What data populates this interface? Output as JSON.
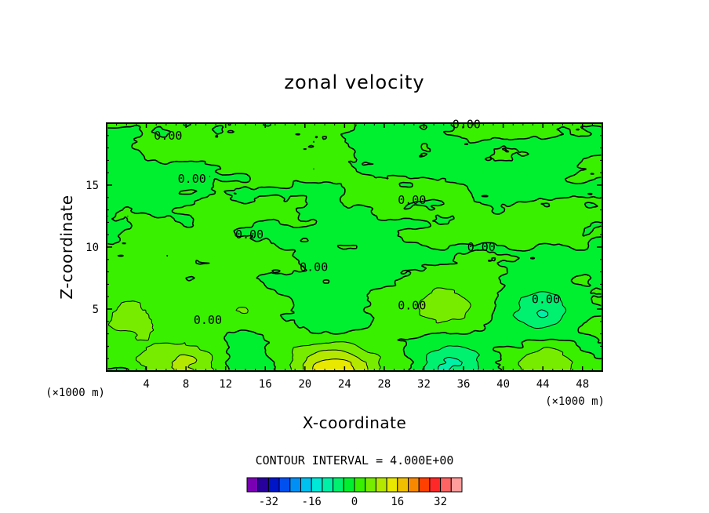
{
  "chart_data": {
    "type": "contour",
    "title": "zonal velocity",
    "xlabel": "X-coordinate",
    "ylabel": "Z-coordinate",
    "x_unit": "(×1000 m)",
    "y_unit": "(×1000 m)",
    "xlim": [
      0,
      50
    ],
    "ylim": [
      0,
      20
    ],
    "x_ticks": [
      4,
      8,
      12,
      16,
      20,
      24,
      28,
      32,
      36,
      40,
      44,
      48
    ],
    "y_ticks": [
      5,
      10,
      15
    ],
    "contour_interval_text": "CONTOUR INTERVAL = 4.000E+00",
    "contour_labels": [
      {
        "text": "0.00",
        "x": 6.2,
        "z": 19.0
      },
      {
        "text": "0.00",
        "x": 8.6,
        "z": 15.5
      },
      {
        "text": "0.00",
        "x": 36.3,
        "z": 19.9
      },
      {
        "text": "0.00",
        "x": 30.8,
        "z": 13.8
      },
      {
        "text": "0.00",
        "x": 14.4,
        "z": 11.0
      },
      {
        "text": "0.00",
        "x": 37.8,
        "z": 10.0
      },
      {
        "text": "0.00",
        "x": 20.9,
        "z": 8.4
      },
      {
        "text": "0.00",
        "x": 30.8,
        "z": 5.3
      },
      {
        "text": "0.00",
        "x": 44.3,
        "z": 5.8
      },
      {
        "text": "0.00",
        "x": 10.2,
        "z": 4.1
      }
    ],
    "colorbar": {
      "levels": [
        -36,
        -32,
        -28,
        -24,
        -20,
        -16,
        -12,
        -8,
        -4,
        0,
        4,
        8,
        12,
        16,
        20,
        24,
        28,
        32,
        36
      ],
      "tick_labels": [
        "-32",
        "-16",
        "0",
        "16",
        "32"
      ],
      "tick_values": [
        -32,
        -16,
        0,
        16,
        32
      ],
      "colors": [
        "#7a00b4",
        "#28009c",
        "#0014c8",
        "#0050f0",
        "#0090f5",
        "#00c0f0",
        "#00e8d8",
        "#00f0a8",
        "#00f070",
        "#00f030",
        "#38f000",
        "#78ec00",
        "#b4e800",
        "#e8e800",
        "#f0c000",
        "#f88800",
        "#ff4000",
        "#ff2828",
        "#ff6464",
        "#ff9c9c"
      ]
    },
    "features": [
      {
        "type": "positive",
        "x": 22.4,
        "z": 0.4,
        "value": 14
      },
      {
        "type": "positive",
        "x": 7.0,
        "z": 0.4,
        "value": 10
      },
      {
        "type": "positive",
        "x": 44.4,
        "z": 0.4,
        "value": 8
      },
      {
        "type": "positive",
        "x": 34.0,
        "z": 5.2,
        "value": 6
      },
      {
        "type": "positive",
        "x": 2.0,
        "z": 4.4,
        "value": 6
      },
      {
        "type": "positive",
        "x": 13.5,
        "z": 4.7,
        "value": 5
      },
      {
        "type": "negative",
        "x": 34.8,
        "z": 0.5,
        "value": -8
      },
      {
        "type": "negative",
        "x": 43.8,
        "z": 4.7,
        "value": -8
      },
      {
        "type": "negative",
        "x": 22.2,
        "z": 4.3,
        "value": -5
      },
      {
        "type": "negative",
        "x": 14.0,
        "z": 2.2,
        "value": -4
      }
    ]
  }
}
